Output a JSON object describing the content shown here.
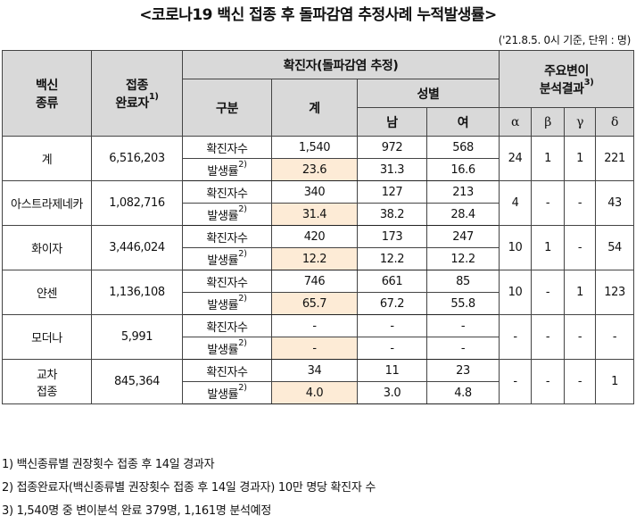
{
  "title": "<코로나19 백신 접종 후 돌파감염 추정사례 누적발생률>",
  "unit_note": "('21.8.5. 0시 기준, 단위 : 명)",
  "headers": {
    "vaccine_type": "백신종류",
    "vaccine_type_l1": "백신",
    "vaccine_type_l2": "종류",
    "completed_l1": "접종",
    "completed_l2": "완료자",
    "completed_sup": "1)",
    "confirmed_group": "확진자(돌파감염 추정)",
    "category": "구분",
    "total": "계",
    "sex": "성별",
    "male": "남",
    "female": "여",
    "variant_l1": "주요변이",
    "variant_l2": "분석결과",
    "variant_sup": "3)",
    "alpha": "α",
    "beta": "β",
    "gamma": "γ",
    "delta": "δ"
  },
  "row_labels": {
    "confirmed": "확진자수",
    "rate": "발생률",
    "rate_sup": "2)"
  },
  "rows": [
    {
      "name": "계",
      "completed": "6,516,203",
      "confirmed": {
        "total": "1,540",
        "male": "972",
        "female": "568"
      },
      "rate": {
        "total": "23.6",
        "male": "31.3",
        "female": "16.6"
      },
      "variants": {
        "alpha": "24",
        "beta": "1",
        "gamma": "1",
        "delta": "221"
      }
    },
    {
      "name": "아스트라제네카",
      "completed": "1,082,716",
      "confirmed": {
        "total": "340",
        "male": "127",
        "female": "213"
      },
      "rate": {
        "total": "31.4",
        "male": "38.2",
        "female": "28.4"
      },
      "variants": {
        "alpha": "4",
        "beta": "-",
        "gamma": "-",
        "delta": "43"
      }
    },
    {
      "name": "화이자",
      "completed": "3,446,024",
      "confirmed": {
        "total": "420",
        "male": "173",
        "female": "247"
      },
      "rate": {
        "total": "12.2",
        "male": "12.2",
        "female": "12.2"
      },
      "variants": {
        "alpha": "10",
        "beta": "1",
        "gamma": "-",
        "delta": "54"
      }
    },
    {
      "name": "얀센",
      "completed": "1,136,108",
      "confirmed": {
        "total": "746",
        "male": "661",
        "female": "85"
      },
      "rate": {
        "total": "65.7",
        "male": "67.2",
        "female": "55.8"
      },
      "variants": {
        "alpha": "10",
        "beta": "-",
        "gamma": "1",
        "delta": "123"
      }
    },
    {
      "name": "모더나",
      "completed": "5,991",
      "confirmed": {
        "total": "-",
        "male": "-",
        "female": "-"
      },
      "rate": {
        "total": "-",
        "male": "-",
        "female": "-"
      },
      "variants": {
        "alpha": "-",
        "beta": "-",
        "gamma": "-",
        "delta": "-"
      }
    },
    {
      "name_l1": "교차",
      "name_l2": "접종",
      "completed": "845,364",
      "confirmed": {
        "total": "34",
        "male": "11",
        "female": "23"
      },
      "rate": {
        "total": "4.0",
        "male": "3.0",
        "female": "4.8"
      },
      "variants": {
        "alpha": "-",
        "beta": "-",
        "gamma": "-",
        "delta": "1"
      }
    }
  ],
  "notes": [
    "1) 백신종류별 권장횟수 접종 후 14일 경과자",
    "2) 접종완료자(백신종류별 권장횟수 접종 후 14일 경과자) 10만 명당 확진자 수",
    "3) 1,540명 중 변이분석 완료 379명, 1,161명 분석예정"
  ],
  "colors": {
    "header_bg": "#d9d9d9",
    "highlight_bg": "#fdebd6",
    "border": "#444444"
  }
}
